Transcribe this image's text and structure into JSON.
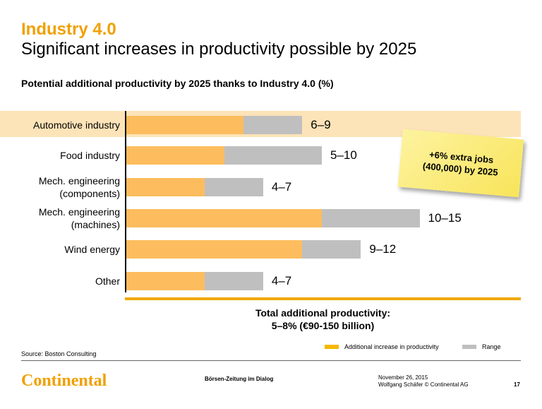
{
  "header": {
    "title": "Industry 4.0",
    "subtitle": "Significant increases in productivity possible by 2025"
  },
  "chart_data": {
    "type": "bar",
    "orientation": "horizontal",
    "stacked": true,
    "title": "Potential additional productivity by 2025 thanks to Industry 4.0 (%)",
    "categories": [
      "Automotive industry",
      "Food industry",
      "Mech. engineering (components)",
      "Mech. engineering (machines)",
      "Wind energy",
      "Other"
    ],
    "categories_display": [
      [
        "Automotive industry"
      ],
      [
        "Food industry"
      ],
      [
        "Mech. engineering",
        "(components)"
      ],
      [
        "Mech. engineering",
        "(machines)"
      ],
      [
        "Wind energy"
      ],
      [
        "Other"
      ]
    ],
    "series": [
      {
        "name": "Additional increase in productivity",
        "color": "#fdbd5e",
        "values": [
          6,
          5,
          4,
          10,
          9,
          4
        ]
      },
      {
        "name": "Range",
        "color": "#bfbfbf",
        "values": [
          3,
          5,
          3,
          5,
          3,
          3
        ]
      }
    ],
    "data_labels": [
      "6–9",
      "5–10",
      "4–7",
      "10–15",
      "9–12",
      "4–7"
    ],
    "highlighted_category": "Automotive industry",
    "highlight_color": "#fde3b8",
    "xlim": [
      0,
      20
    ]
  },
  "total": {
    "line1": "Total additional productivity:",
    "line2": "5–8% (€90-150 billion)"
  },
  "note": {
    "line1": "+6% extra jobs",
    "line2": "(400,000) by 2025"
  },
  "legend": {
    "productivity_color": "#f5b800",
    "range_color": "#bfbfbf"
  },
  "footer": {
    "source": "Source: Boston Consulting",
    "logo": "Continental",
    "event": "Börsen-Zeitung im Dialog",
    "date": "November 26, 2015",
    "author": "Wolfgang Schäfer © Continental AG",
    "page": "17"
  }
}
